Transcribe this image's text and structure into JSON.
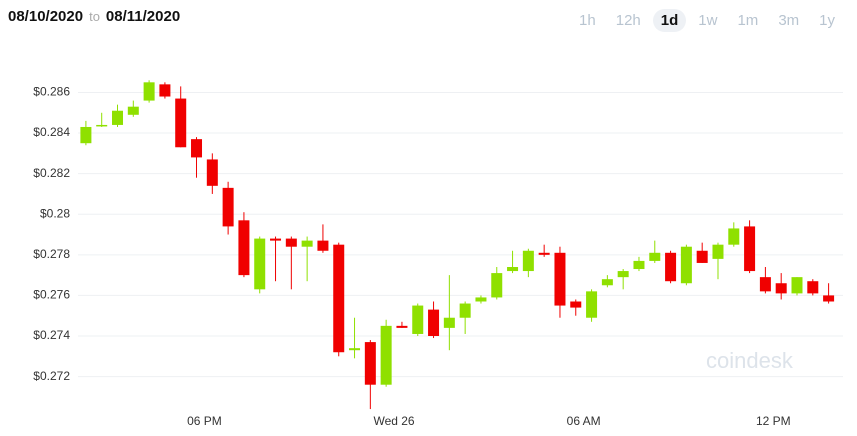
{
  "header": {
    "start": "08/10/2020",
    "separator": "to",
    "end": "08/11/2020"
  },
  "range_buttons": [
    "1h",
    "12h",
    "1d",
    "1w",
    "1m",
    "3m",
    "1y"
  ],
  "active_range": 2,
  "chart_data": {
    "type": "candlestick",
    "watermark": "coindesk",
    "up_color": "#8fe000",
    "down_color": "#f00000",
    "grid": true,
    "categories": [
      null,
      null,
      null,
      null,
      null,
      null,
      null,
      null,
      "06 PM",
      null,
      null,
      null,
      null,
      null,
      null,
      null,
      null,
      null,
      null,
      null,
      "Wed 26",
      null,
      null,
      null,
      null,
      null,
      null,
      null,
      null,
      null,
      null,
      null,
      "06 AM",
      null,
      null,
      null,
      null,
      null,
      null,
      null,
      null,
      null,
      null,
      null,
      "12 PM",
      null,
      null,
      null
    ],
    "open": [
      0.2835,
      0.2844,
      0.2844,
      0.2849,
      0.2856,
      0.2864,
      0.2857,
      0.2837,
      0.2827,
      0.2813,
      0.2797,
      0.2763,
      0.2788,
      0.2788,
      0.2784,
      0.2787,
      0.2785,
      0.2733,
      0.2737,
      0.2716,
      0.2745,
      0.2741,
      0.2753,
      0.2744,
      0.2749,
      0.2757,
      0.2759,
      0.2772,
      0.2772,
      0.2781,
      0.2781,
      0.2757,
      0.2749,
      0.2765,
      0.2769,
      0.2773,
      0.2777,
      0.2781,
      0.2766,
      0.2782,
      0.2778,
      0.2785,
      0.2794,
      0.2769,
      0.2766,
      0.2761,
      0.2767,
      0.276
    ],
    "high": [
      0.2846,
      0.285,
      0.2854,
      0.2856,
      0.2866,
      0.2865,
      0.2863,
      0.2838,
      0.283,
      0.2816,
      0.2801,
      0.2789,
      0.2789,
      0.2789,
      0.2789,
      0.2795,
      0.2786,
      0.2749,
      0.2738,
      0.2748,
      0.2747,
      0.2756,
      0.2757,
      0.277,
      0.2757,
      0.276,
      0.2774,
      0.2782,
      0.2783,
      0.2785,
      0.2784,
      0.2758,
      0.2763,
      0.277,
      0.2773,
      0.2779,
      0.2787,
      0.2782,
      0.2785,
      0.2786,
      0.2786,
      0.2796,
      0.2797,
      0.2774,
      0.2771,
      0.2769,
      0.2768,
      0.2766
    ],
    "low": [
      0.2834,
      0.2843,
      0.2843,
      0.2848,
      0.2855,
      0.2857,
      0.2833,
      0.2818,
      0.281,
      0.279,
      0.2769,
      0.2761,
      0.2767,
      0.2763,
      0.2767,
      0.2781,
      0.273,
      0.2729,
      0.2704,
      0.2715,
      0.2744,
      0.274,
      0.2739,
      0.2733,
      0.2741,
      0.2756,
      0.2758,
      0.2771,
      0.2769,
      0.2779,
      0.2749,
      0.275,
      0.2747,
      0.2764,
      0.2763,
      0.2772,
      0.2776,
      0.2766,
      0.2765,
      0.2776,
      0.2768,
      0.2784,
      0.2771,
      0.2761,
      0.2758,
      0.276,
      0.276,
      0.2756
    ],
    "close": [
      0.2843,
      0.2844,
      0.2851,
      0.2853,
      0.2865,
      0.2858,
      0.2833,
      0.2828,
      0.2814,
      0.2794,
      0.277,
      0.2788,
      0.2787,
      0.2784,
      0.2787,
      0.2782,
      0.2732,
      0.2734,
      0.2716,
      0.2745,
      0.2744,
      0.2755,
      0.274,
      0.2749,
      0.2756,
      0.2759,
      0.2771,
      0.2774,
      0.2782,
      0.278,
      0.2755,
      0.2754,
      0.2762,
      0.2768,
      0.2772,
      0.2777,
      0.2781,
      0.2767,
      0.2784,
      0.2776,
      0.2785,
      0.2793,
      0.2772,
      0.2762,
      0.2761,
      0.2769,
      0.2761,
      0.2757
    ],
    "ylim": [
      0.2706,
      0.2876
    ],
    "yticks": [
      {
        "value": 0.272,
        "label": "$0.272"
      },
      {
        "value": 0.274,
        "label": "$0.274"
      },
      {
        "value": 0.276,
        "label": "$0.276"
      },
      {
        "value": 0.278,
        "label": "$0.278"
      },
      {
        "value": 0.28,
        "label": "$0.28"
      },
      {
        "value": 0.282,
        "label": "$0.282"
      },
      {
        "value": 0.284,
        "label": "$0.284"
      },
      {
        "value": 0.286,
        "label": "$0.286"
      }
    ]
  }
}
